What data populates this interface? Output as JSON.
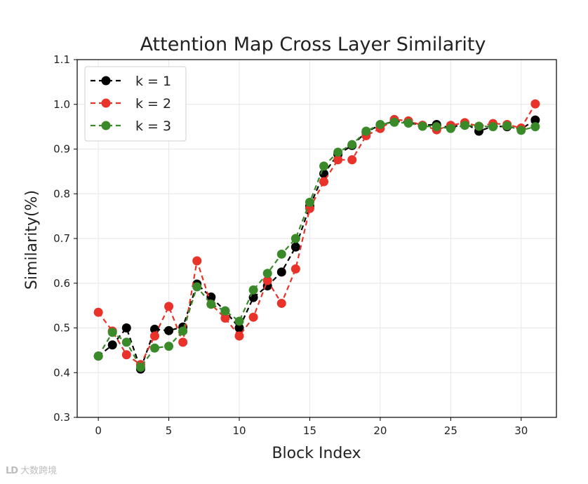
{
  "chart_data": {
    "type": "line",
    "title": "Attention Map Cross Layer Similarity",
    "xlabel": "Block Index",
    "ylabel": "Similarity(%)",
    "xlim": [
      -1.5,
      32.5
    ],
    "ylim": [
      0.3,
      1.1
    ],
    "xticks": [
      0,
      5,
      10,
      15,
      20,
      25,
      30
    ],
    "yticks": [
      0.3,
      0.4,
      0.5,
      0.6,
      0.7,
      0.8,
      0.9,
      1.0,
      1.1
    ],
    "xtick_labels": [
      "0",
      "5",
      "10",
      "15",
      "20",
      "25",
      "30"
    ],
    "ytick_labels": [
      "0.3",
      "0.4",
      "0.5",
      "0.6",
      "0.7",
      "0.8",
      "0.9",
      "1.0",
      "1.1"
    ],
    "grid": true,
    "legend_position": "top-left",
    "x": [
      0,
      1,
      2,
      3,
      4,
      5,
      6,
      7,
      8,
      9,
      10,
      11,
      12,
      13,
      14,
      15,
      16,
      17,
      18,
      19,
      20,
      21,
      22,
      23,
      24,
      25,
      26,
      27,
      28,
      29,
      30,
      31
    ],
    "series": [
      {
        "name": "k = 1",
        "color": "#000000",
        "values": [
          0.437,
          0.462,
          0.5,
          0.408,
          0.497,
          0.494,
          0.502,
          0.598,
          0.569,
          0.538,
          0.5,
          0.568,
          0.594,
          0.625,
          0.681,
          0.772,
          0.845,
          0.888,
          0.908,
          0.938,
          0.954,
          0.962,
          0.96,
          0.953,
          0.955,
          0.947,
          0.958,
          0.94,
          0.951,
          0.95,
          0.945,
          0.965
        ]
      },
      {
        "name": "k = 2",
        "color": "#e8322a",
        "values": [
          0.535,
          0.493,
          0.44,
          0.418,
          0.482,
          0.548,
          0.468,
          0.65,
          0.553,
          0.522,
          0.482,
          0.524,
          0.606,
          0.555,
          0.632,
          0.767,
          0.827,
          0.876,
          0.876,
          0.93,
          0.946,
          0.966,
          0.963,
          0.953,
          0.943,
          0.953,
          0.959,
          0.951,
          0.957,
          0.955,
          0.947,
          1.001
        ]
      },
      {
        "name": "k = 3",
        "color": "#3a8a2a",
        "values": [
          0.437,
          0.49,
          0.468,
          0.412,
          0.455,
          0.459,
          0.493,
          0.592,
          0.553,
          0.538,
          0.515,
          0.585,
          0.622,
          0.665,
          0.7,
          0.781,
          0.862,
          0.893,
          0.91,
          0.94,
          0.955,
          0.96,
          0.958,
          0.951,
          0.95,
          0.946,
          0.953,
          0.951,
          0.95,
          0.952,
          0.942,
          0.95
        ]
      }
    ]
  },
  "watermark": {
    "logo": "LD",
    "text": "大数跨境"
  }
}
